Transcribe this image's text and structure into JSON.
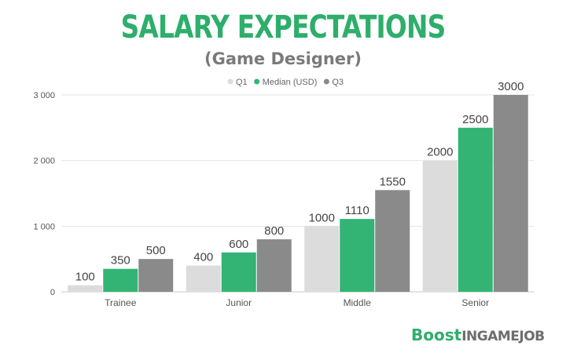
{
  "chart_data": {
    "type": "bar",
    "title": "SALARY EXPECTATIONS",
    "subtitle": "(Game Designer)",
    "categories": [
      "Trainee",
      "Junior",
      "Middle",
      "Senior"
    ],
    "series": [
      {
        "name": "Q1",
        "color": "#dcdcdc",
        "values": [
          100,
          400,
          1000,
          2000
        ]
      },
      {
        "name": "Median (USD)",
        "color": "#33b474",
        "values": [
          350,
          600,
          1110,
          2500
        ]
      },
      {
        "name": "Q3",
        "color": "#8a8a8a",
        "values": [
          500,
          800,
          1550,
          3000
        ]
      }
    ],
    "yticks": [
      {
        "value": 0,
        "label": "0"
      },
      {
        "value": 1000,
        "label": "1 000"
      },
      {
        "value": 2000,
        "label": "2 000"
      },
      {
        "value": 3000,
        "label": "3 000"
      }
    ],
    "ylim": [
      0,
      3000
    ],
    "grid": true,
    "legend": "top-center"
  },
  "brand": {
    "boost": "Boost",
    "rest": "INGAMEJOB"
  }
}
